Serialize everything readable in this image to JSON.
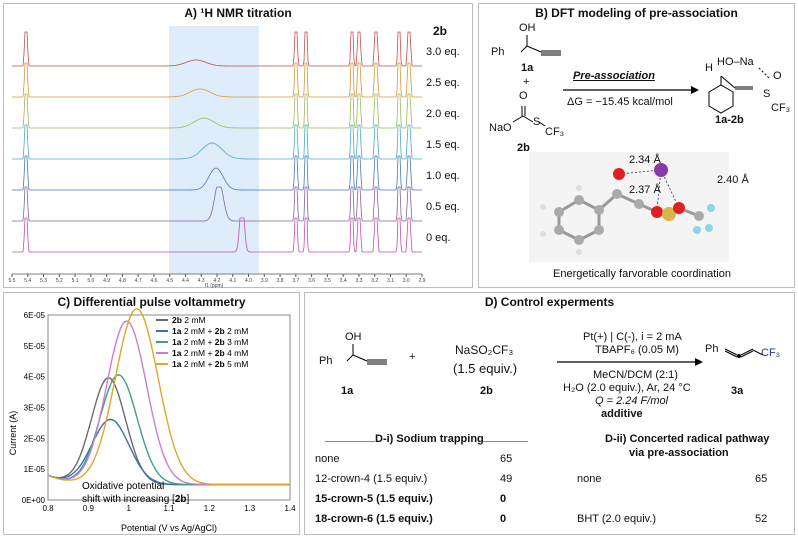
{
  "panelA": {
    "title": "A) ¹H NMR titration",
    "compound": "2b",
    "eq_labels": [
      "3.0 eq.",
      "2.5 eq.",
      "2.0 eq.",
      "1.5 eq.",
      "1.0 eq.",
      "0.5 eq.",
      "0 eq."
    ],
    "ticks": [
      "5.5",
      "5.4",
      "5.3",
      "5.2",
      "5.1",
      "5.0",
      "4.9",
      "4.8",
      "4.7",
      "4.6",
      "4.5",
      "4.4",
      "4.3",
      "4.2",
      "4.1",
      "4.0",
      "3.9",
      "3.8",
      "3.7",
      "3.6",
      "3.5",
      "3.4",
      "3.3",
      "3.2",
      "3.1",
      "3.0",
      "2.9"
    ],
    "axis_label": "f1 (ppm)",
    "trace_colors": [
      "#c0504d",
      "#d39a36",
      "#9bbb59",
      "#4bacc6",
      "#4a78b8",
      "#8064a2",
      "#c050b0"
    ]
  },
  "panelB": {
    "title": "B) DFT modeling of pre-association",
    "oh": "OH",
    "ph": "Ph",
    "label_1a": "1a",
    "plus": "+",
    "nao": "NaO",
    "s": "S",
    "o": "O",
    "cf3": "CF₃",
    "label_2b": "2b",
    "arrow_top": "Pre-association",
    "arrow_bottom": "ΔG = −15.45 kcal/mol",
    "h": "H",
    "hona": "HO–Na",
    "label_product": "1a-2b",
    "dist1": "2.34 Å",
    "dist2": "2.37 Å",
    "dist3": "2.40 Å",
    "caption": "Energetically farvorable coordination"
  },
  "panelC": {
    "title": "C) Differential pulse voltammetry",
    "ylabel": "Current (A)",
    "xlabel": "Potential (V vs Ag/AgCl)",
    "annotation_line1": "Oxidative potential",
    "annotation_line2": "shift with increasing [2b]",
    "legend": [
      {
        "a": "",
        "b": "2b",
        "c": " 2 mM",
        "color": "#6b6b6b"
      },
      {
        "a": "1a",
        "b": "2b",
        "c": " 2 mM",
        "pre": " 2 mM + ",
        "color": "#3d6fb0"
      },
      {
        "a": "1a",
        "b": "2b",
        "c": " 3 mM",
        "pre": " 2 mM + ",
        "color": "#3aa37c"
      },
      {
        "a": "1a",
        "b": "2b",
        "c": " 4 mM",
        "pre": " 2 mM + ",
        "color": "#c77fd6"
      },
      {
        "a": "1a",
        "b": "2b",
        "c": " 5 mM",
        "pre": " 2 mM + ",
        "color": "#e0a52b"
      }
    ],
    "chart_data": {
      "type": "line",
      "xlabel": "Potential (V vs Ag/AgCl)",
      "ylabel": "Current (A)",
      "xlim": [
        0.8,
        1.4
      ],
      "ylim": [
        0,
        6e-05
      ],
      "xticks": [
        "0.8",
        "0.9",
        "1",
        "1.1",
        "1.2",
        "1.3",
        "1.4"
      ],
      "yticks": [
        "0E+00",
        "1E-05",
        "2E-05",
        "3E-05",
        "4E-05",
        "5E-05",
        "6E-05"
      ],
      "series": [
        {
          "name": "2b 2 mM",
          "color": "#6b6b6b",
          "peak_x": 0.95,
          "peak_y": 3.45e-05,
          "width": 0.06,
          "base": 5e-06
        },
        {
          "name": "1a 2 mM + 2b 2 mM",
          "color": "#3d6fb0",
          "peak_x": 0.955,
          "peak_y": 2.1e-05,
          "width": 0.065,
          "base": 5e-06
        },
        {
          "name": "1a 2 mM + 2b 3 mM",
          "color": "#3aa37c",
          "peak_x": 0.975,
          "peak_y": 3.55e-05,
          "width": 0.065,
          "base": 5e-06
        },
        {
          "name": "1a 2 mM + 2b 4 mM",
          "color": "#c77fd6",
          "peak_x": 0.995,
          "peak_y": 5.3e-05,
          "width": 0.07,
          "base": 5e-06
        },
        {
          "name": "1a 2 mM + 2b 5 mM",
          "color": "#e0a52b",
          "peak_x": 1.02,
          "peak_y": 5.7e-05,
          "width": 0.075,
          "base": 5e-06
        }
      ]
    }
  },
  "panelD": {
    "title": "D) Control experments",
    "oh": "OH",
    "ph": "Ph",
    "label_1a": "1a",
    "plus": "+",
    "reagent": "NaSO₂CF₃",
    "reagent_equiv": "(1.5 equiv.)",
    "label_2b": "2b",
    "cond1": "Pt(+) | C(-), i = 2 mA",
    "cond2": "TBAPF₆ (0.05 M)",
    "cond3": "MeCN/DCM (2:1)",
    "cond4": "H₂O (2.0 equiv.), Ar, 24 °C",
    "cond5": "Q = 2.24 F/mol",
    "cond6": "additive",
    "prod_ph": "Ph",
    "prod_cf3": "CF₃",
    "label_3a": "3a",
    "di_title": "D-i) Sodium trapping",
    "di_rows": [
      {
        "name": "none",
        "value": "65"
      },
      {
        "name": "12-crown-4 (1.5 equiv.)",
        "value": "49"
      },
      {
        "name": "15-crown-5 (1.5 equiv.)",
        "value": "0"
      },
      {
        "name": "18-crown-6 (1.5 equiv.)",
        "value": "0"
      }
    ],
    "dii_title1": "D-ii) Concerted radical pathway",
    "dii_title2": "via pre-association",
    "dii_rows": [
      {
        "name": "none",
        "value": "65"
      },
      {
        "name": "BHT (2.0 equiv.)",
        "value": "52"
      }
    ]
  }
}
